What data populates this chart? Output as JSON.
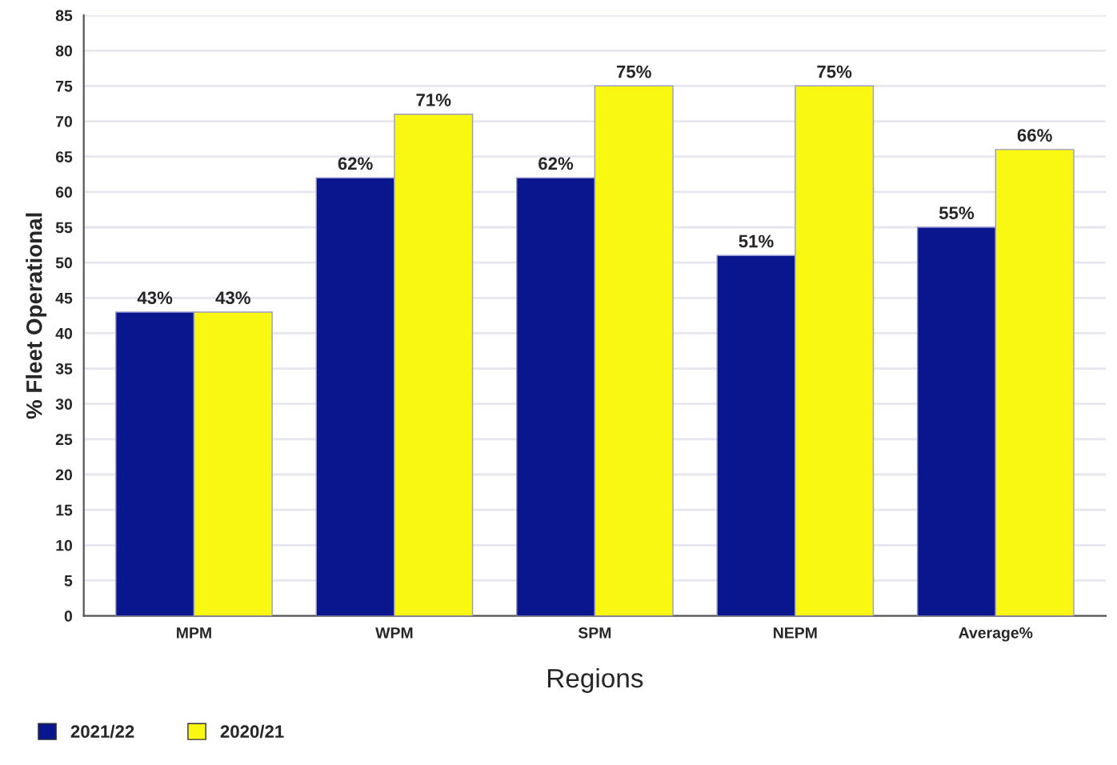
{
  "chart_data": {
    "type": "bar",
    "xlabel": "Regions",
    "ylabel": "% Fleet Operational",
    "categories": [
      "MPM",
      "WPM",
      "SPM",
      "NEPM",
      "Average%"
    ],
    "series": [
      {
        "name": "2021/22",
        "color": "#0a168e",
        "values": [
          43,
          62,
          62,
          51,
          55
        ],
        "value_labels": [
          "43%",
          "62%",
          "62%",
          "51%",
          "55%"
        ]
      },
      {
        "name": "2020/21",
        "color": "#f8f812",
        "values": [
          43,
          71,
          75,
          75,
          66
        ],
        "value_labels": [
          "43%",
          "71%",
          "75%",
          "75%",
          "66%"
        ]
      }
    ],
    "ylim": [
      0,
      85
    ],
    "yticks": [
      0,
      5,
      10,
      15,
      20,
      25,
      30,
      35,
      40,
      45,
      50,
      55,
      60,
      65,
      70,
      75,
      80,
      85
    ],
    "grid": "y",
    "legend": "bottom left"
  }
}
